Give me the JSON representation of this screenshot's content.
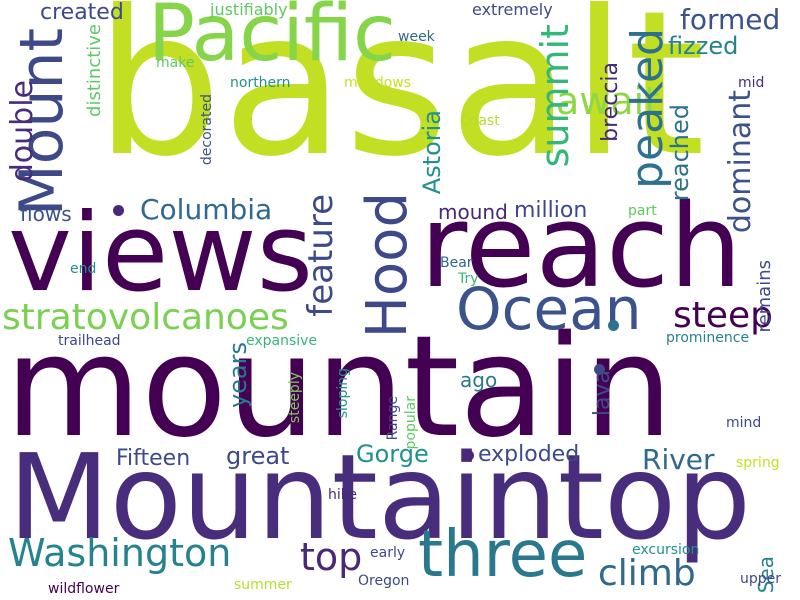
{
  "words": [
    {
      "text": "basalt",
      "color": "#c2df23",
      "orientation": "horizontal"
    },
    {
      "text": "mountain",
      "color": "#440154",
      "orientation": "horizontal"
    },
    {
      "text": "Mountaintop",
      "color": "#472d7b",
      "orientation": "horizontal"
    },
    {
      "text": "reach",
      "color": "#440154",
      "orientation": "horizontal"
    },
    {
      "text": "views",
      "color": "#440154",
      "orientation": "horizontal"
    },
    {
      "text": "Pacific",
      "color": "#86d549",
      "orientation": "horizontal"
    },
    {
      "text": "Ocean",
      "color": "#3b528b",
      "orientation": "horizontal"
    },
    {
      "text": "Mount",
      "color": "#3e4989",
      "orientation": "vertical"
    },
    {
      "text": "Hood",
      "color": "#3e4989",
      "orientation": "vertical"
    },
    {
      "text": "three",
      "color": "#2a788e",
      "orientation": "horizontal"
    },
    {
      "text": "Washington",
      "color": "#25838e",
      "orientation": "horizontal"
    },
    {
      "text": "stratovolcanoes",
      "color": "#7ad151",
      "orientation": "horizontal"
    },
    {
      "text": "climb",
      "color": "#31688e",
      "orientation": "horizontal"
    },
    {
      "text": "top",
      "color": "#482878",
      "orientation": "horizontal"
    },
    {
      "text": "Columbia",
      "color": "#31688e",
      "orientation": "horizontal"
    },
    {
      "text": "steep",
      "color": "#440154",
      "orientation": "horizontal"
    },
    {
      "text": "await",
      "color": "#8fd744",
      "orientation": "horizontal"
    },
    {
      "text": "formed",
      "color": "#3b528b",
      "orientation": "horizontal"
    },
    {
      "text": "peaked",
      "color": "#2c728e",
      "orientation": "vertical"
    },
    {
      "text": "summit",
      "color": "#35b779",
      "orientation": "vertical"
    },
    {
      "text": "feature",
      "color": "#3e4989",
      "orientation": "vertical"
    },
    {
      "text": "double",
      "color": "#472d7b",
      "orientation": "vertical"
    },
    {
      "text": "dominant",
      "color": "#3b528b",
      "orientation": "vertical"
    },
    {
      "text": "fizzed",
      "color": "#26828e",
      "orientation": "horizontal"
    },
    {
      "text": "created",
      "color": "#3e4989",
      "orientation": "horizontal"
    },
    {
      "text": "River",
      "color": "#31688e",
      "orientation": "horizontal"
    },
    {
      "text": "Gorge",
      "color": "#21918c",
      "orientation": "horizontal"
    },
    {
      "text": "Fifteen",
      "color": "#3e4989",
      "orientation": "horizontal"
    },
    {
      "text": "great",
      "color": "#3e4989",
      "orientation": "horizontal"
    },
    {
      "text": "exploded",
      "color": "#3e4989",
      "orientation": "horizontal"
    },
    {
      "text": "Sea",
      "color": "#26828e",
      "orientation": "vertical"
    },
    {
      "text": "million",
      "color": "#3e4989",
      "orientation": "horizontal"
    },
    {
      "text": "mound",
      "color": "#482878",
      "orientation": "horizontal"
    },
    {
      "text": "Astoria",
      "color": "#21918c",
      "orientation": "vertical"
    },
    {
      "text": "breccia",
      "color": "#482878",
      "orientation": "vertical"
    },
    {
      "text": "reached",
      "color": "#2c728e",
      "orientation": "vertical"
    },
    {
      "text": "remains",
      "color": "#3e4989",
      "orientation": "vertical"
    },
    {
      "text": "flows",
      "color": "#3b528b",
      "orientation": "horizontal"
    },
    {
      "text": "years",
      "color": "#2a788e",
      "orientation": "vertical"
    },
    {
      "text": "ago",
      "color": "#2a788e",
      "orientation": "horizontal"
    },
    {
      "text": "lava",
      "color": "#3e4989",
      "orientation": "vertical"
    },
    {
      "text": "distinctive",
      "color": "#5ec962",
      "orientation": "vertical"
    },
    {
      "text": "justifiably",
      "color": "#5ec962",
      "orientation": "horizontal"
    },
    {
      "text": "extremely",
      "color": "#3e4989",
      "orientation": "horizontal"
    },
    {
      "text": "week",
      "color": "#31688e",
      "orientation": "horizontal"
    },
    {
      "text": "make",
      "color": "#5ec962",
      "orientation": "horizontal"
    },
    {
      "text": "northern",
      "color": "#21918c",
      "orientation": "horizontal"
    },
    {
      "text": "meadows",
      "color": "#c8e020",
      "orientation": "horizontal"
    },
    {
      "text": "mid",
      "color": "#472d7b",
      "orientation": "horizontal"
    },
    {
      "text": "decorated",
      "color": "#3b528b",
      "orientation": "vertical"
    },
    {
      "text": "Coast",
      "color": "#b5de2b",
      "orientation": "horizontal"
    },
    {
      "text": "part",
      "color": "#5ec962",
      "orientation": "horizontal"
    },
    {
      "text": "end",
      "color": "#21918c",
      "orientation": "horizontal"
    },
    {
      "text": "Bear",
      "color": "#31688e",
      "orientation": "horizontal"
    },
    {
      "text": "Try",
      "color": "#35b779",
      "orientation": "horizontal"
    },
    {
      "text": "trailhead",
      "color": "#3e4989",
      "orientation": "horizontal"
    },
    {
      "text": "expansive",
      "color": "#35b779",
      "orientation": "horizontal"
    },
    {
      "text": "prominence",
      "color": "#26828e",
      "orientation": "horizontal"
    },
    {
      "text": "steeply",
      "color": "#7ad151",
      "orientation": "vertical"
    },
    {
      "text": "sloping",
      "color": "#21918c",
      "orientation": "vertical"
    },
    {
      "text": "Range",
      "color": "#3e4989",
      "orientation": "vertical"
    },
    {
      "text": "popular",
      "color": "#5ec962",
      "orientation": "vertical"
    },
    {
      "text": "mind",
      "color": "#3e4989",
      "orientation": "horizontal"
    },
    {
      "text": "spring",
      "color": "#c8e020",
      "orientation": "horizontal"
    },
    {
      "text": "hike",
      "color": "#482878",
      "orientation": "horizontal"
    },
    {
      "text": "early",
      "color": "#3e4989",
      "orientation": "horizontal"
    },
    {
      "text": "excursion",
      "color": "#21918c",
      "orientation": "horizontal"
    },
    {
      "text": "summer",
      "color": "#b5de2b",
      "orientation": "horizontal"
    },
    {
      "text": "Oregon",
      "color": "#3e4989",
      "orientation": "horizontal"
    },
    {
      "text": "upper",
      "color": "#3e4989",
      "orientation": "horizontal"
    },
    {
      "text": "wildflower",
      "color": "#440154",
      "orientation": "horizontal"
    }
  ],
  "marks": [
    {
      "color": "#2c728e"
    },
    {
      "color": "#482878"
    },
    {
      "color": "#482878"
    },
    {
      "color": "#3e4989"
    }
  ]
}
